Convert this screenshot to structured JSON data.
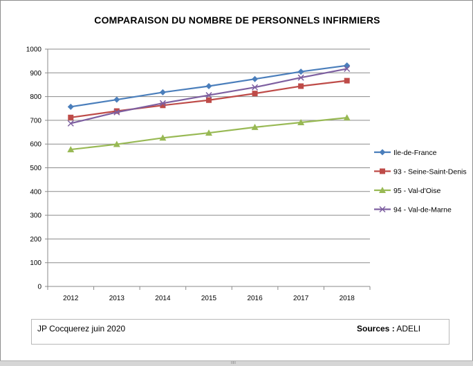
{
  "chart_data": {
    "type": "line",
    "title": "COMPARAISON DU NOMBRE DE PERSONNELS INFIRMIERS",
    "xlabel": "",
    "ylabel": "",
    "categories": [
      "2012",
      "2013",
      "2014",
      "2015",
      "2016",
      "2017",
      "2018"
    ],
    "ylim": [
      0,
      1000
    ],
    "yticks": [
      "0",
      "100",
      "200",
      "300",
      "400",
      "500",
      "600",
      "700",
      "800",
      "900",
      "1000"
    ],
    "grid": "horizontal",
    "legend_position": "right",
    "series": [
      {
        "name": "Ile-de-France",
        "values": [
          757,
          787,
          818,
          844,
          874,
          905,
          931
        ],
        "color": "#4a7ebb",
        "marker": "diamond"
      },
      {
        "name": "93 - Seine-Saint-Denis",
        "values": [
          712,
          739,
          763,
          785,
          813,
          844,
          867
        ],
        "color": "#be4b48",
        "marker": "square"
      },
      {
        "name": "95 - Val-d'Oise",
        "values": [
          577,
          599,
          626,
          647,
          671,
          691,
          711
        ],
        "color": "#98b954",
        "marker": "triangle"
      },
      {
        "name": "94 - Val-de-Marne",
        "values": [
          687,
          734,
          772,
          806,
          839,
          880,
          917
        ],
        "color": "#7d5fa0",
        "marker": "x"
      }
    ]
  },
  "footer": {
    "author": "JP Cocquerez   juin 2020",
    "sources_label": "Sources :",
    "sources_value": " ADELI"
  },
  "scrollbar_grip": "IIIII"
}
